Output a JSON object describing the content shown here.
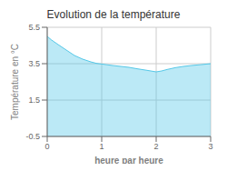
{
  "chart_data": {
    "type": "area",
    "title": "Evolution de la température",
    "xlabel": "heure par heure",
    "ylabel": "Température en °C",
    "x": [
      0,
      0.08,
      0.2,
      0.35,
      0.5,
      0.65,
      0.8,
      0.9,
      1.0,
      1.1,
      1.2,
      1.35,
      1.5,
      1.65,
      1.8,
      1.9,
      2.0,
      2.1,
      2.2,
      2.35,
      2.5,
      2.65,
      2.8,
      2.9,
      3.0
    ],
    "values": [
      5.0,
      4.8,
      4.55,
      4.25,
      3.95,
      3.75,
      3.6,
      3.52,
      3.48,
      3.44,
      3.4,
      3.35,
      3.3,
      3.22,
      3.15,
      3.1,
      3.05,
      3.1,
      3.18,
      3.28,
      3.35,
      3.4,
      3.44,
      3.47,
      3.5
    ],
    "color": "#55c8e8",
    "xlim": [
      0,
      3
    ],
    "ylim": [
      -0.5,
      5.5
    ],
    "xticks": [
      0,
      1,
      2,
      3
    ],
    "yticks": [
      -0.5,
      1.5,
      3.5,
      5.5
    ],
    "grid": true
  }
}
